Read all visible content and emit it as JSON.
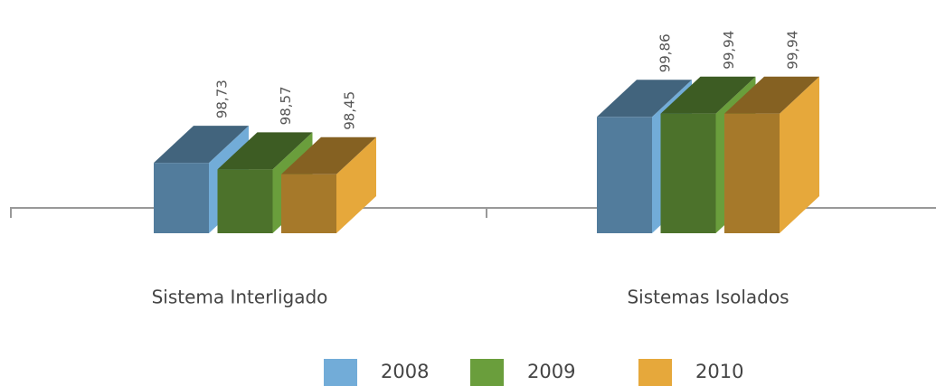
{
  "chart_data": {
    "type": "bar3d",
    "categories": [
      "Sistema Interligado",
      "Sistemas Isolados"
    ],
    "series": [
      {
        "name": "2008",
        "color": "#72acd8",
        "values": [
          98.73,
          99.86
        ],
        "value_labels": [
          "98,73",
          "99,86"
        ]
      },
      {
        "name": "2009",
        "color": "#6a9e3c",
        "values": [
          98.57,
          99.94
        ],
        "value_labels": [
          "98,57",
          "99,94"
        ]
      },
      {
        "name": "2010",
        "color": "#e6a83b",
        "values": [
          98.45,
          99.94
        ],
        "value_labels": [
          "98,45",
          "99,94"
        ]
      }
    ],
    "ylim": [
      97,
      100.2
    ],
    "legend": "bottom"
  }
}
